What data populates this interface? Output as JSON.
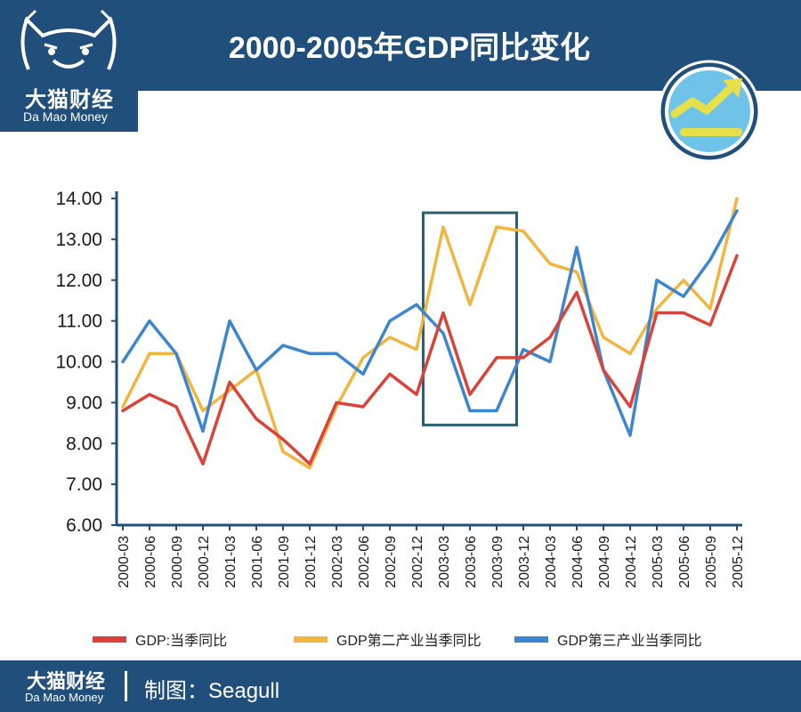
{
  "brand": {
    "name_cn": "大猫财经",
    "name_en": "Da Mao Money"
  },
  "header": {
    "title": "2000-2005年GDP同比变化"
  },
  "footer": {
    "brand_cn": "大猫财经",
    "brand_en": "Da Mao Money",
    "credit": "制图：Seagull"
  },
  "colors": {
    "header_bg": "#1f4f7a",
    "red": "#d9443a",
    "yellow": "#f2b640",
    "blue": "#3d86cf",
    "highlight_box": "#2b5f72"
  },
  "icons": {
    "logo": "cat-face-icon",
    "badge": "trend-arrow-icon"
  },
  "chart_data": {
    "type": "line",
    "categories": [
      "2000-03",
      "2000-06",
      "2000-09",
      "2000-12",
      "2001-03",
      "2001-06",
      "2001-09",
      "2001-12",
      "2002-03",
      "2002-06",
      "2002-09",
      "2002-12",
      "2003-03",
      "2003-06",
      "2003-09",
      "2003-12",
      "2004-03",
      "2004-06",
      "2004-09",
      "2004-12",
      "2005-03",
      "2005-06",
      "2005-09",
      "2005-12"
    ],
    "series": [
      {
        "name": "GDP:当季同比",
        "color": "#d9443a",
        "values": [
          8.8,
          9.2,
          8.9,
          7.5,
          9.5,
          8.6,
          8.1,
          7.5,
          9.0,
          8.9,
          9.7,
          9.2,
          11.2,
          9.2,
          10.1,
          10.1,
          10.6,
          11.7,
          9.8,
          8.9,
          11.2,
          11.2,
          10.9,
          12.6
        ]
      },
      {
        "name": "GDP第二产业当季同比",
        "color": "#f2b640",
        "values": [
          8.9,
          10.2,
          10.2,
          8.8,
          9.3,
          9.8,
          7.8,
          7.4,
          8.9,
          10.1,
          10.6,
          10.3,
          13.3,
          11.4,
          13.3,
          13.2,
          12.4,
          12.2,
          10.6,
          10.2,
          11.3,
          12.0,
          11.3,
          14.0
        ]
      },
      {
        "name": "GDP第三产业当季同比",
        "color": "#3d86cf",
        "values": [
          10.0,
          11.0,
          10.2,
          8.3,
          11.0,
          9.8,
          10.4,
          10.2,
          10.2,
          9.7,
          11.0,
          11.4,
          10.7,
          8.8,
          8.8,
          10.3,
          10.0,
          12.8,
          9.8,
          8.2,
          12.0,
          11.6,
          12.5,
          13.7
        ]
      }
    ],
    "ylim": [
      6.0,
      14.0
    ],
    "yticks": [
      "6.00",
      "7.00",
      "8.00",
      "9.00",
      "10.00",
      "11.00",
      "12.00",
      "13.00",
      "14.00"
    ],
    "highlight": {
      "from": "2003-03",
      "to": "2003-09"
    },
    "legend_position": "bottom",
    "grid": false
  }
}
